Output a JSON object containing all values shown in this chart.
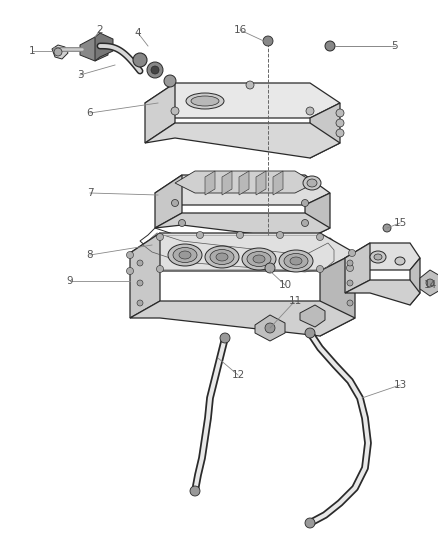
{
  "background_color": "#ffffff",
  "line_color": "#2a2a2a",
  "label_color": "#555555",
  "fig_width": 4.38,
  "fig_height": 5.33,
  "dpi": 100,
  "label_fontsize": 7.5
}
